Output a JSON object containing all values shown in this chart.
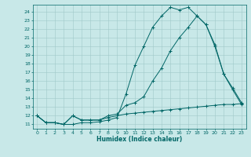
{
  "title": "",
  "xlabel": "Humidex (Indice chaleur)",
  "bg_color": "#c8e8e8",
  "line_color": "#006666",
  "grid_color": "#a0c8c8",
  "xlim": [
    -0.5,
    23.5
  ],
  "ylim": [
    10.5,
    24.8
  ],
  "yticks": [
    11,
    12,
    13,
    14,
    15,
    16,
    17,
    18,
    19,
    20,
    21,
    22,
    23,
    24
  ],
  "xticks": [
    0,
    1,
    2,
    3,
    4,
    5,
    6,
    7,
    8,
    9,
    10,
    11,
    12,
    13,
    14,
    15,
    16,
    17,
    18,
    19,
    20,
    21,
    22,
    23
  ],
  "line1_x": [
    0,
    1,
    2,
    3,
    4,
    5,
    6,
    7,
    8,
    9,
    10,
    11,
    12,
    13,
    14,
    15,
    16,
    17,
    18,
    19,
    20,
    21,
    22,
    23
  ],
  "line1_y": [
    12.0,
    11.2,
    11.2,
    11.0,
    11.0,
    11.2,
    11.2,
    11.3,
    11.5,
    11.8,
    14.5,
    17.8,
    20.0,
    22.2,
    23.5,
    24.5,
    24.2,
    24.5,
    23.5,
    22.5,
    20.0,
    16.8,
    15.0,
    13.3
  ],
  "line2_x": [
    0,
    1,
    2,
    3,
    4,
    5,
    6,
    7,
    8,
    9,
    10,
    11,
    12,
    13,
    14,
    15,
    16,
    17,
    18,
    19,
    20,
    21,
    22,
    23
  ],
  "line2_y": [
    12.0,
    11.2,
    11.2,
    11.0,
    12.0,
    11.5,
    11.5,
    11.5,
    12.0,
    12.2,
    13.2,
    13.5,
    14.2,
    16.0,
    17.5,
    19.5,
    21.0,
    22.2,
    23.5,
    22.5,
    20.2,
    16.8,
    15.2,
    13.5
  ],
  "line3_x": [
    0,
    1,
    2,
    3,
    4,
    5,
    6,
    7,
    8,
    9,
    10,
    11,
    12,
    13,
    14,
    15,
    16,
    17,
    18,
    19,
    20,
    21,
    22,
    23
  ],
  "line3_y": [
    12.0,
    11.2,
    11.2,
    11.0,
    12.0,
    11.5,
    11.5,
    11.5,
    11.8,
    12.0,
    12.2,
    12.3,
    12.4,
    12.5,
    12.6,
    12.7,
    12.8,
    12.9,
    13.0,
    13.1,
    13.2,
    13.3,
    13.3,
    13.4
  ]
}
